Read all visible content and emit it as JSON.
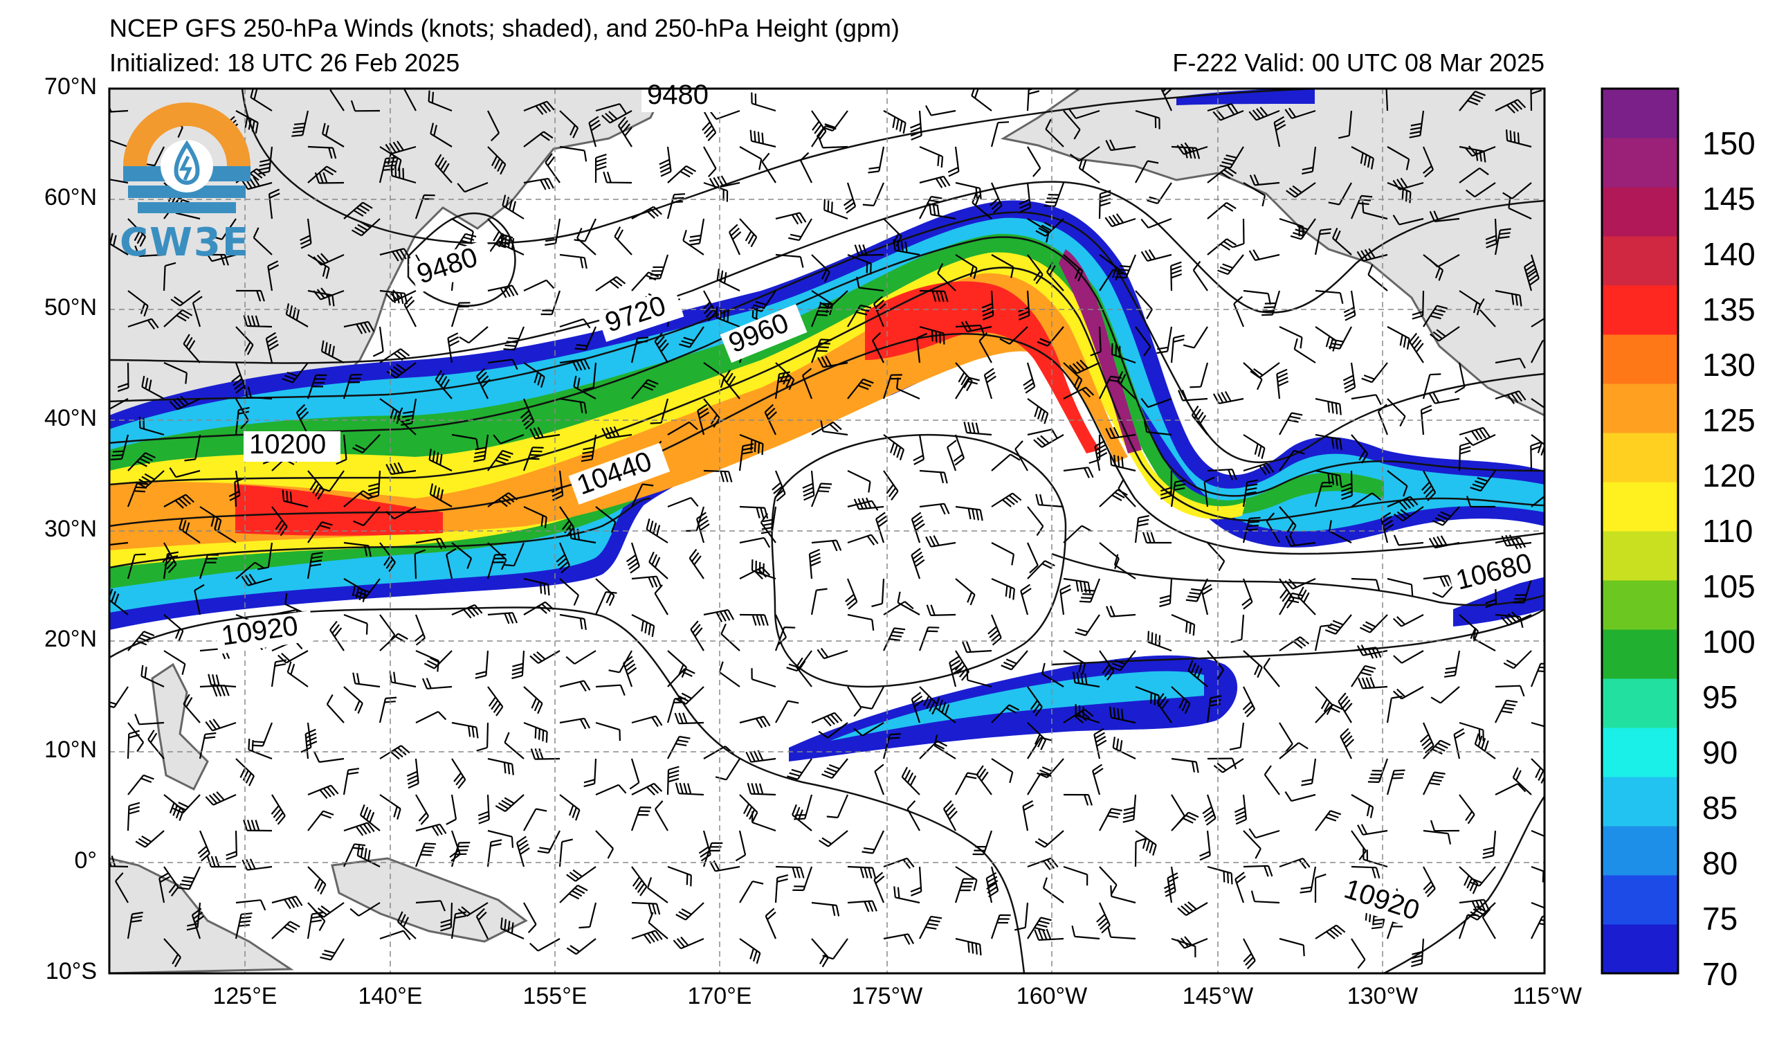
{
  "header": {
    "title": "NCEP GFS 250-hPa Winds (knots; shaded), and 250-hPa Height (gpm)",
    "initialized": "Initialized: 18 UTC 26 Feb 2025",
    "valid": "F-222  Valid: 00 UTC 08 Mar 2025"
  },
  "logo": {
    "text": "CW3E",
    "icon": "cw3e-logo-icon"
  },
  "axes": {
    "lat_labels": [
      "70°N",
      "60°N",
      "50°N",
      "40°N",
      "30°N",
      "20°N",
      "10°N",
      "0°",
      "10°S"
    ],
    "lon_labels": [
      "125°E",
      "140°E",
      "155°E",
      "170°E",
      "175°W",
      "160°W",
      "145°W",
      "130°W",
      "115°W"
    ]
  },
  "colorbar": {
    "labels": [
      "70",
      "75",
      "80",
      "85",
      "90",
      "95",
      "100",
      "105",
      "110",
      "120",
      "125",
      "130",
      "135",
      "140",
      "145",
      "150"
    ],
    "colors": [
      "#1a1ed0",
      "#1c4be8",
      "#1e8fe8",
      "#22c3f0",
      "#1af0e8",
      "#22e0a0",
      "#22b030",
      "#6cc820",
      "#c8e020",
      "#fff020",
      "#ffd020",
      "#ffa020",
      "#ff7818",
      "#ff2820",
      "#d02840",
      "#b01858",
      "#9a2078",
      "#7a2088"
    ]
  },
  "contour_labels": [
    {
      "text": "9480"
    },
    {
      "text": "9480"
    },
    {
      "text": "9720"
    },
    {
      "text": "9960"
    },
    {
      "text": "10200"
    },
    {
      "text": "10440"
    },
    {
      "text": "10680"
    },
    {
      "text": "10920"
    },
    {
      "text": "10920"
    }
  ]
}
